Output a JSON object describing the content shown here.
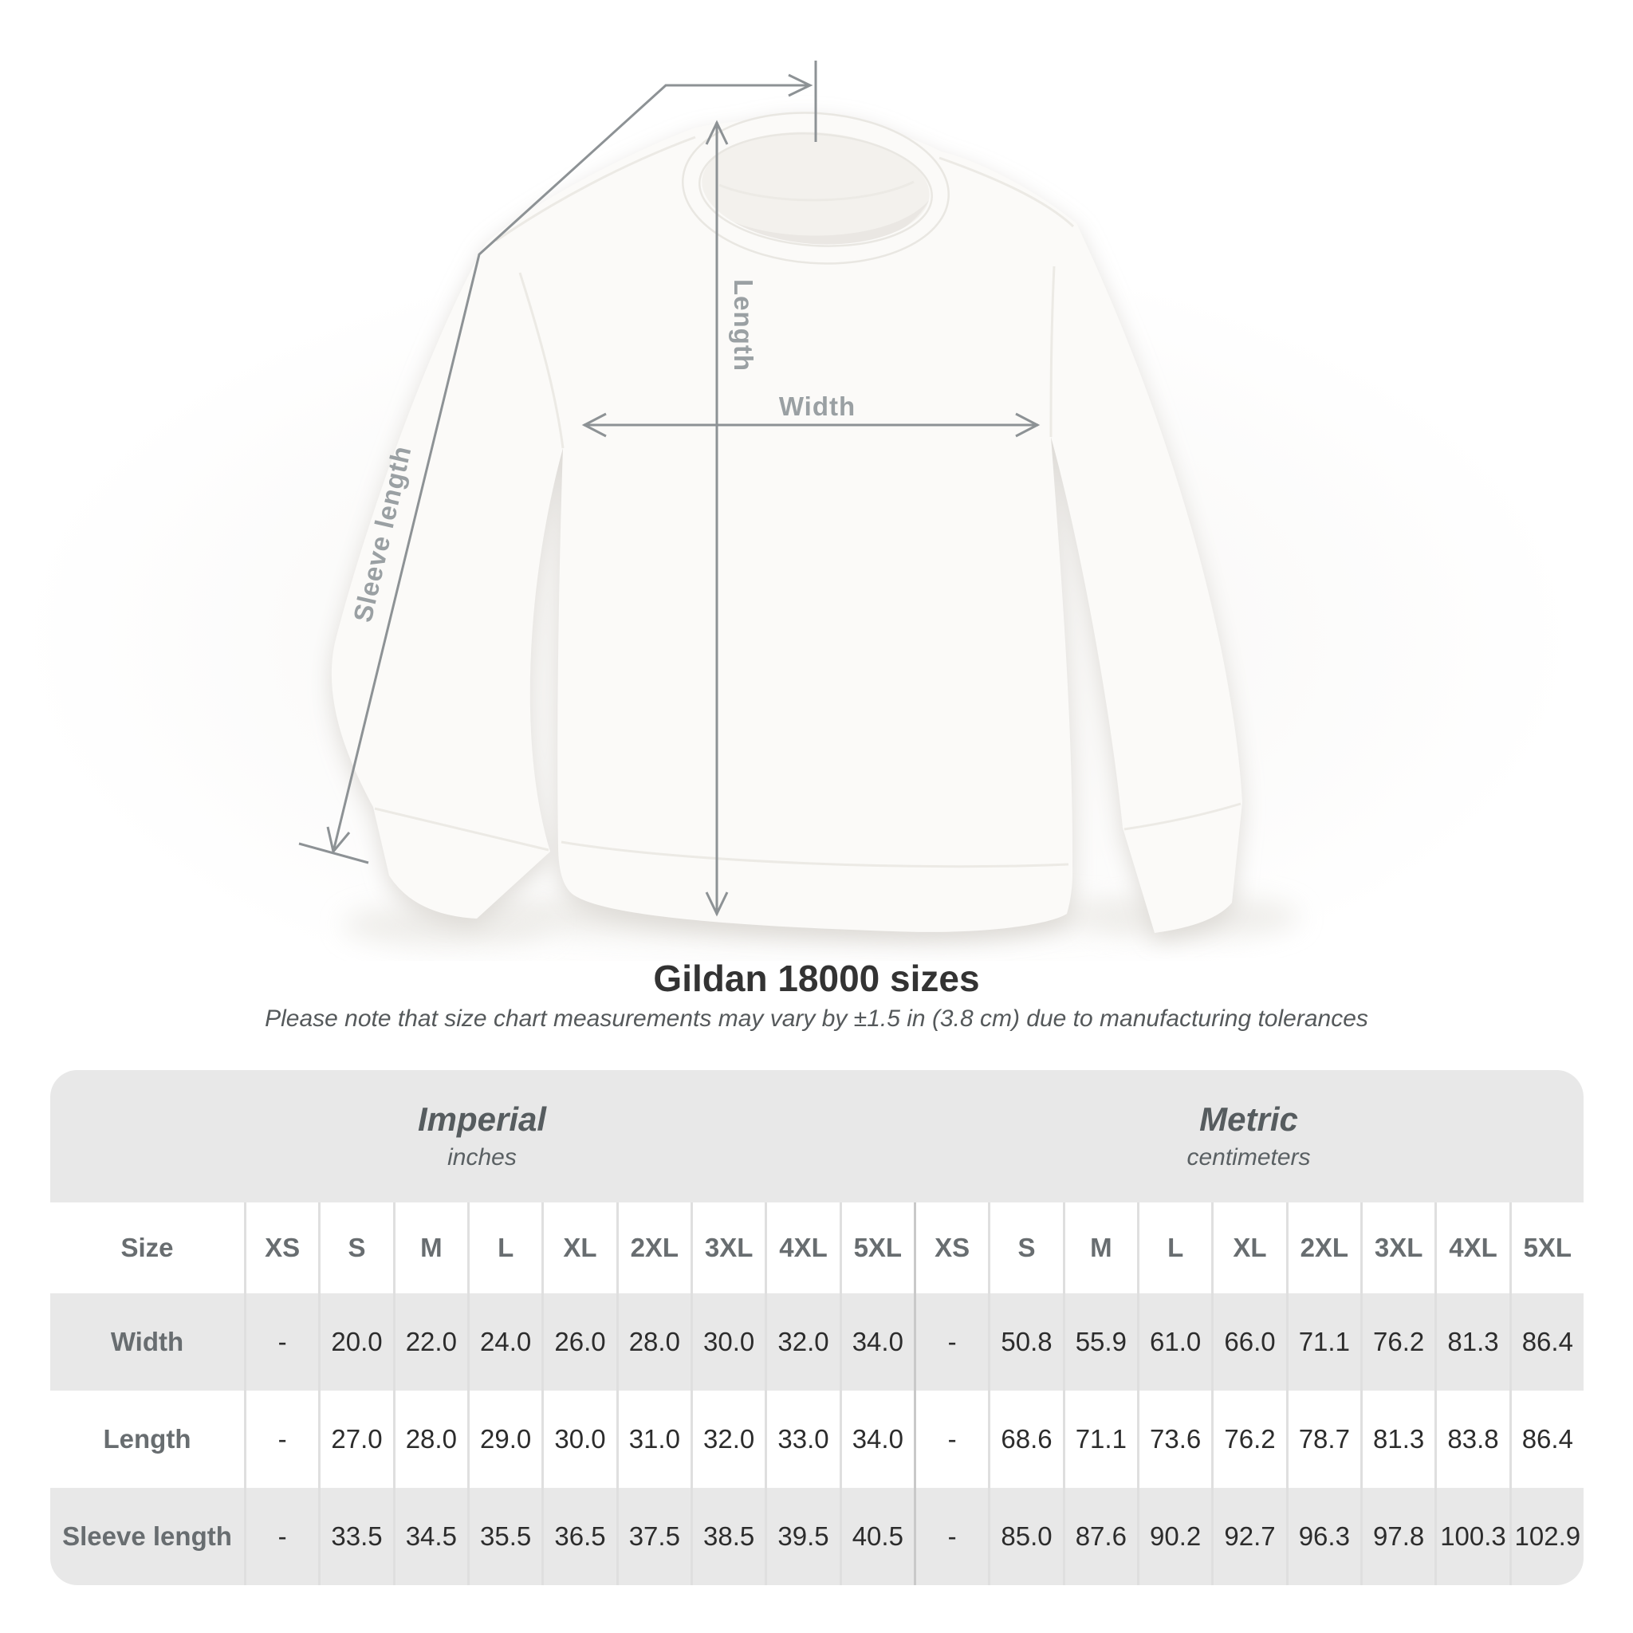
{
  "diagram": {
    "length_label": "Length",
    "width_label": "Width",
    "sleeve_label": "Sleeve length"
  },
  "heading": {
    "title": "Gildan 18000 sizes",
    "subtitle": "Please note that size chart measurements may vary by ±1.5 in (3.8 cm) due to manufacturing tolerances"
  },
  "table": {
    "imperial": {
      "title": "Imperial",
      "unit": "inches"
    },
    "metric": {
      "title": "Metric",
      "unit": "centimeters"
    },
    "size_header": "Size",
    "sizes": [
      "XS",
      "S",
      "M",
      "L",
      "XL",
      "2XL",
      "3XL",
      "4XL",
      "5XL",
      "XS",
      "S",
      "M",
      "L",
      "XL",
      "2XL",
      "3XL",
      "4XL",
      "5XL"
    ],
    "rows": [
      {
        "label": "Width",
        "values": [
          "-",
          "20.0",
          "22.0",
          "24.0",
          "26.0",
          "28.0",
          "30.0",
          "32.0",
          "34.0",
          "-",
          "50.8",
          "55.9",
          "61.0",
          "66.0",
          "71.1",
          "76.2",
          "81.3",
          "86.4"
        ]
      },
      {
        "label": "Length",
        "values": [
          "-",
          "27.0",
          "28.0",
          "29.0",
          "30.0",
          "31.0",
          "32.0",
          "33.0",
          "34.0",
          "-",
          "68.6",
          "71.1",
          "73.6",
          "76.2",
          "78.7",
          "81.3",
          "83.8",
          "86.4"
        ]
      },
      {
        "label": "Sleeve length",
        "values": [
          "-",
          "33.5",
          "34.5",
          "35.5",
          "36.5",
          "37.5",
          "38.5",
          "39.5",
          "40.5",
          "-",
          "85.0",
          "87.6",
          "90.2",
          "92.7",
          "96.3",
          "97.8",
          "100.3",
          "102.9"
        ]
      }
    ]
  },
  "chart_data": {
    "type": "table",
    "title": "Gildan 18000 sizes",
    "columns": [
      "Size",
      "XS",
      "S",
      "M",
      "L",
      "XL",
      "2XL",
      "3XL",
      "4XL",
      "5XL (in)",
      "XS",
      "S",
      "M",
      "L",
      "XL",
      "2XL",
      "3XL",
      "4XL",
      "5XL (cm)"
    ],
    "rows": [
      [
        "Width",
        "-",
        20.0,
        22.0,
        24.0,
        26.0,
        28.0,
        30.0,
        32.0,
        34.0,
        "-",
        50.8,
        55.9,
        61.0,
        66.0,
        71.1,
        76.2,
        81.3,
        86.4
      ],
      [
        "Length",
        "-",
        27.0,
        28.0,
        29.0,
        30.0,
        31.0,
        32.0,
        33.0,
        34.0,
        "-",
        68.6,
        71.1,
        73.6,
        76.2,
        78.7,
        81.3,
        83.8,
        86.4
      ],
      [
        "Sleeve length",
        "-",
        33.5,
        34.5,
        35.5,
        36.5,
        37.5,
        38.5,
        39.5,
        40.5,
        "-",
        85.0,
        87.6,
        90.2,
        92.7,
        96.3,
        97.8,
        100.3,
        102.9
      ]
    ]
  }
}
